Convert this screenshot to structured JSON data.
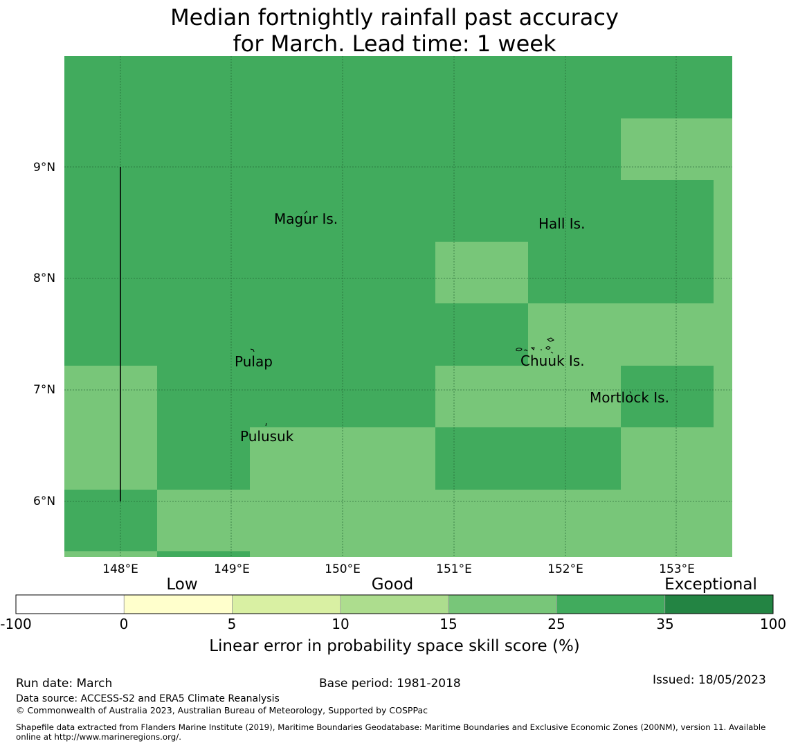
{
  "title": {
    "line1": "Median fortnightly rainfall past accuracy",
    "line2": "for March. Lead time: 1 week"
  },
  "map": {
    "lat_labels": [
      "9°N",
      "8°N",
      "7°N",
      "6°N"
    ],
    "lon_labels": [
      "148°E",
      "149°E",
      "150°E",
      "151°E",
      "152°E",
      "153°E"
    ],
    "places": [
      "Magur Is.",
      "Hall Is.",
      "Pulap",
      "Chuuk Is.",
      "Mortlock Is.",
      "Pulusuk"
    ],
    "colors": {
      "tier_25_35": "#41ab5d",
      "tier_15_25": "#78c679"
    }
  },
  "legend": {
    "categories": [
      "Low",
      "Good",
      "Exceptional"
    ],
    "ticks": [
      "-100",
      "0",
      "5",
      "10",
      "15",
      "25",
      "35",
      "100"
    ],
    "colors": [
      "#ffffff",
      "#ffffcc",
      "#d9f0a3",
      "#addd8e",
      "#78c679",
      "#41ab5d",
      "#238443"
    ],
    "label": "Linear error in probability space skill score (%)"
  },
  "footer": {
    "run_date": "Run date: March",
    "base_period": "Base period: 1981-2018",
    "issued": "Issued: 18/05/2023",
    "data_source": "Data source: ACCESS-S2 and ERA5 Climate Reanalysis",
    "copyright": "© Commonwealth of Australia 2023, Australian Bureau of Meteorology, Supported by COSPPac",
    "shapefile_line1": "Shapefile data extracted from Flanders Marine Institute (2019), Maritime Boundaries Geodatabase: Maritime Boundaries and Exclusive Economic Zones (200NM), version 11. Available",
    "shapefile_line2": "online at http://www.marineregions.org/."
  }
}
